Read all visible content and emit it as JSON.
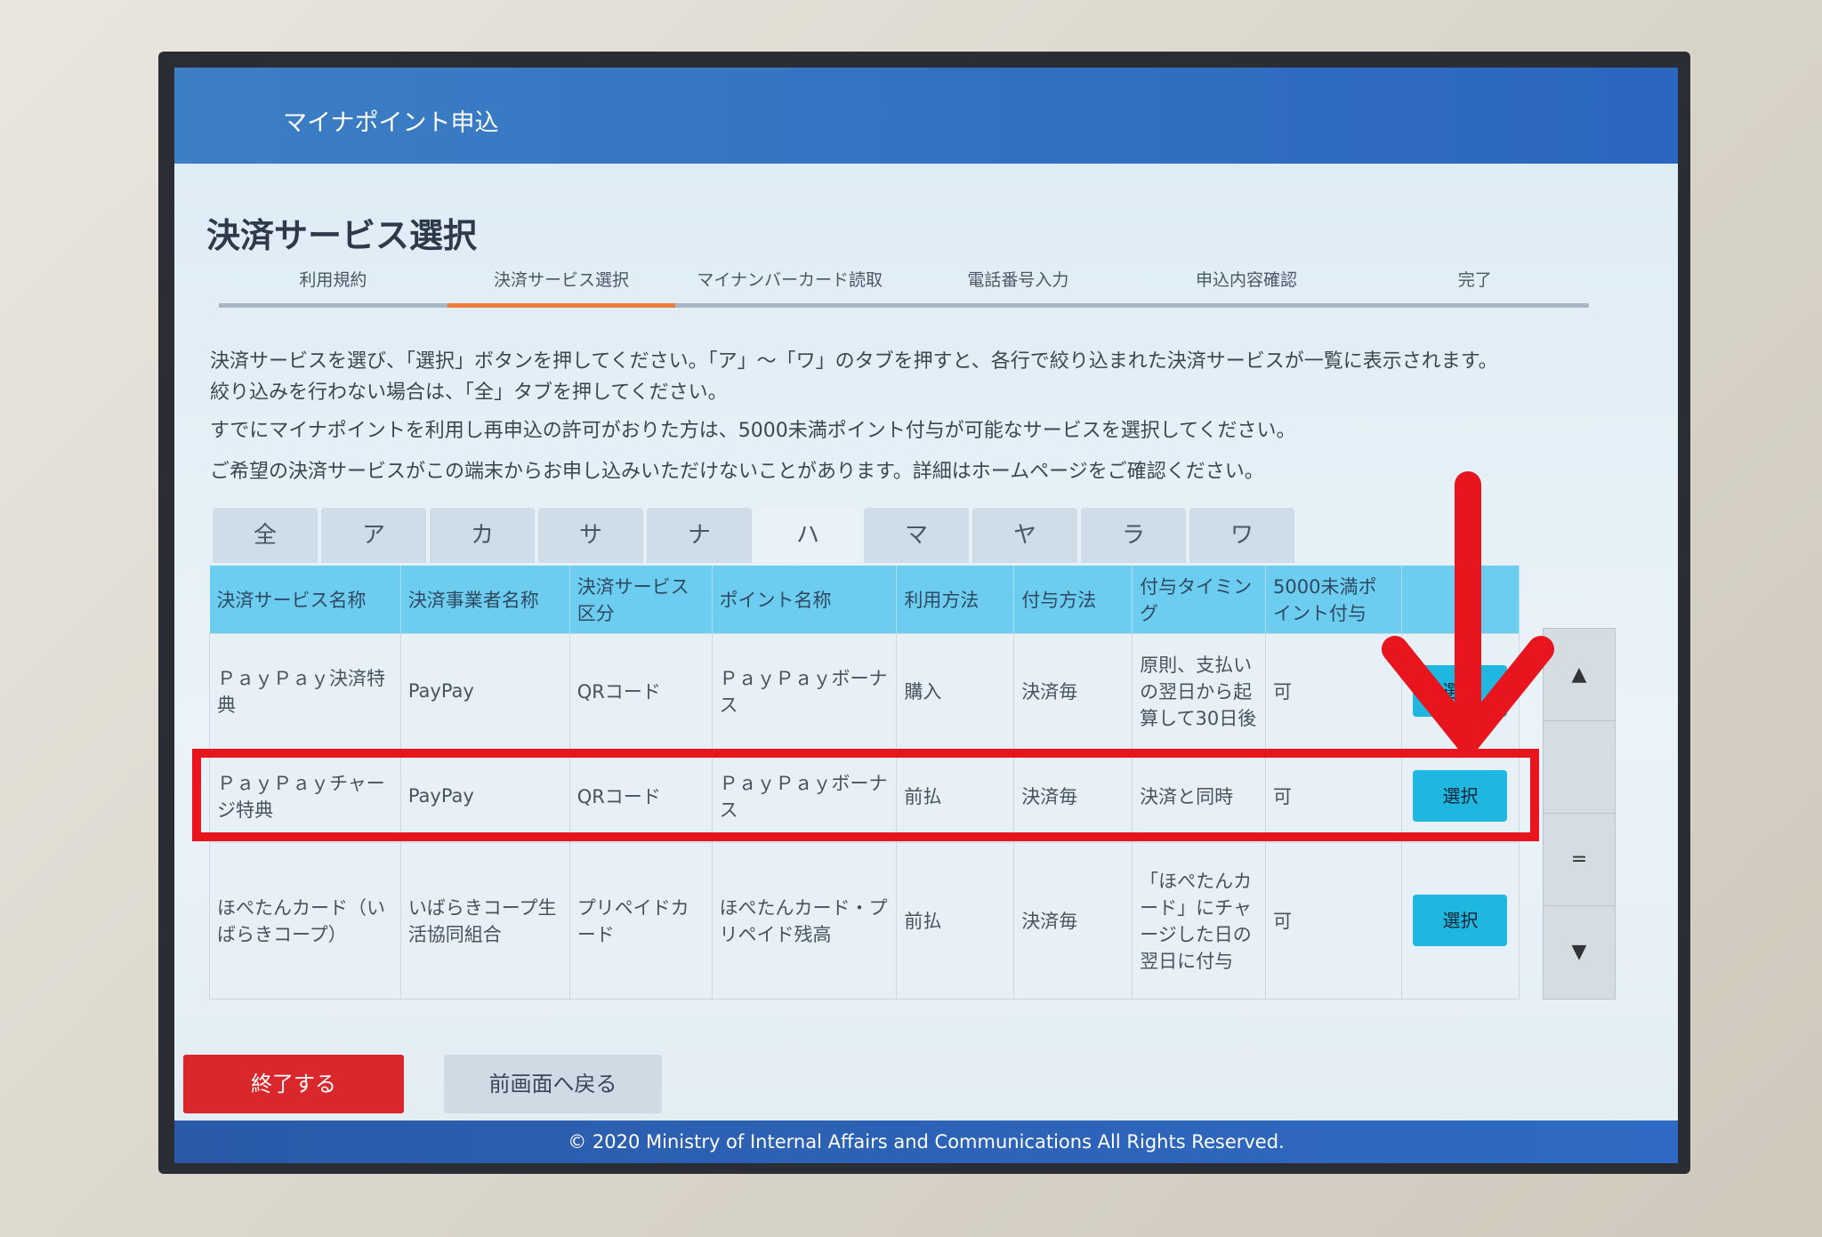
{
  "header": {
    "title": "マイナポイント申込"
  },
  "page_title": "決済サービス選択",
  "steps": [
    {
      "label": "利用規約"
    },
    {
      "label": "決済サービス選択",
      "active": true
    },
    {
      "label": "マイナンバーカード読取"
    },
    {
      "label": "電話番号入力"
    },
    {
      "label": "申込内容確認"
    },
    {
      "label": "完了"
    }
  ],
  "instructions": [
    "決済サービスを選び、「選択」ボタンを押してください。「ア」～「ワ」のタブを押すと、各行で絞り込まれた決済サービスが一覧に表示されます。",
    "絞り込みを行わない場合は、「全」タブを押してください。",
    "すでにマイナポイントを利用し再申込の許可がおりた方は、5000未満ポイント付与が可能なサービスを選択してください。",
    "ご希望の決済サービスがこの端末からお申し込みいただけないことがあります。詳細はホームページをご確認ください。"
  ],
  "tabs": [
    "全",
    "ア",
    "カ",
    "サ",
    "ナ",
    "ハ",
    "マ",
    "ヤ",
    "ラ",
    "ワ"
  ],
  "active_tab": "ハ",
  "table": {
    "headers": [
      "決済サービス名称",
      "決済事業者名称",
      "決済サービス区分",
      "ポイント名称",
      "利用方法",
      "付与方法",
      "付与タイミング",
      "5000未満ポイント付与",
      ""
    ],
    "rows": [
      [
        "ＰａｙＰａｙ決済特典",
        "PayPay",
        "QRコード",
        "ＰａｙＰａｙボーナス",
        "購入",
        "決済毎",
        "原則、支払いの翌日から起算して30日後",
        "可",
        "選択"
      ],
      [
        "ＰａｙＰａｙチャージ特典",
        "PayPay",
        "QRコード",
        "ＰａｙＰａｙボーナス",
        "前払",
        "決済毎",
        "決済と同時",
        "可",
        "選択"
      ],
      [
        "ほぺたんカード（いばらきコープ）",
        "いばらきコープ生活協同組合",
        "プリペイドカード",
        "ほぺたんカード・プリペイド残高",
        "前払",
        "決済毎",
        "「ほぺたんカード」にチャージした日の翌日に付与",
        "可",
        "選択"
      ]
    ]
  },
  "scrollbar": {
    "up": "▲",
    "mid": "=",
    "down": "▼"
  },
  "buttons": {
    "end": "終了する",
    "back": "前画面へ戻る"
  },
  "footer": "© 2020 Ministry of Internal Affairs and Communications All Rights Reserved.",
  "colors": {
    "header": "#2a66c0",
    "accent_step": "#ee7b3a",
    "table_header": "#6ccdf0",
    "select_button": "#1fb6e0",
    "end_button": "#d9272c",
    "annotation": "#e8141e"
  }
}
